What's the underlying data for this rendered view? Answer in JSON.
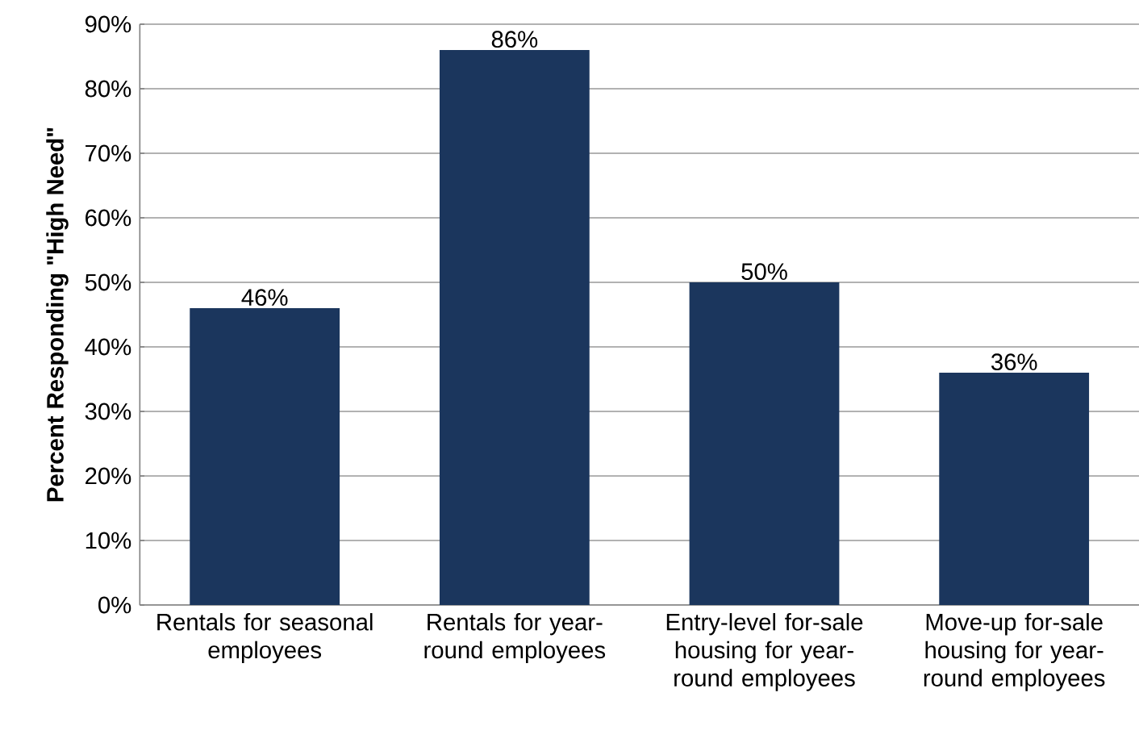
{
  "chart_data": {
    "type": "bar",
    "ylabel": "Percent Responding \"High Need\"",
    "categories": [
      "Rentals for seasonal employees",
      "Rentals for year-round employees",
      "Entry-level for-sale housing for year-round employees",
      "Move-up for-sale housing for year-round employees"
    ],
    "values": [
      46,
      86,
      50,
      36
    ],
    "value_labels": [
      "46%",
      "86%",
      "50%",
      "36%"
    ],
    "color": "#1b365d",
    "ylim": [
      0,
      90
    ],
    "yticks": [
      {
        "value": 0,
        "label": "0%"
      },
      {
        "value": 10,
        "label": "10%"
      },
      {
        "value": 20,
        "label": "20%"
      },
      {
        "value": 30,
        "label": "30%"
      },
      {
        "value": 40,
        "label": "40%"
      },
      {
        "value": 50,
        "label": "50%"
      },
      {
        "value": 60,
        "label": "60%"
      },
      {
        "value": 70,
        "label": "70%"
      },
      {
        "value": 80,
        "label": "80%"
      },
      {
        "value": 90,
        "label": "90%"
      }
    ],
    "grid": "y"
  }
}
